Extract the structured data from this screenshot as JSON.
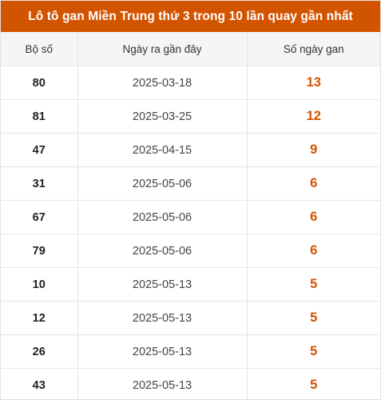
{
  "title": "Lô tô gan Miền Trung thứ 3 trong 10 lần quay gần nhất",
  "colors": {
    "accent": "#d35400",
    "header_bg": "#f5f5f5"
  },
  "headers": [
    "Bộ số",
    "Ngày ra gần đây",
    "Số ngày gan"
  ],
  "rows": [
    {
      "number": "80",
      "date": "2025-03-18",
      "days": "13"
    },
    {
      "number": "81",
      "date": "2025-03-25",
      "days": "12"
    },
    {
      "number": "47",
      "date": "2025-04-15",
      "days": "9"
    },
    {
      "number": "31",
      "date": "2025-05-06",
      "days": "6"
    },
    {
      "number": "67",
      "date": "2025-05-06",
      "days": "6"
    },
    {
      "number": "79",
      "date": "2025-05-06",
      "days": "6"
    },
    {
      "number": "10",
      "date": "2025-05-13",
      "days": "5"
    },
    {
      "number": "12",
      "date": "2025-05-13",
      "days": "5"
    },
    {
      "number": "26",
      "date": "2025-05-13",
      "days": "5"
    },
    {
      "number": "43",
      "date": "2025-05-13",
      "days": "5"
    }
  ]
}
